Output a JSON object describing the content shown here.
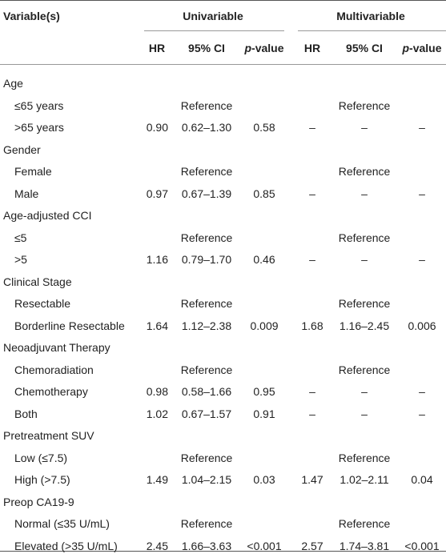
{
  "table": {
    "header": [
      "Variable(s)",
      "Univariable",
      "Multivariable"
    ],
    "subheader": [
      "HR",
      "95% CI",
      "p-value",
      "HR",
      "95% CI",
      "p-value"
    ],
    "rows": [
      [
        "Age"
      ],
      [
        "≤65 years",
        null,
        "Reference",
        null,
        null,
        "Reference",
        null
      ],
      [
        ">65 years",
        "0.90",
        "0.62–1.30",
        "0.58",
        "–",
        "–",
        "–"
      ],
      [
        "Gender"
      ],
      [
        "Female",
        null,
        "Reference",
        null,
        null,
        "Reference",
        null
      ],
      [
        "Male",
        "0.97",
        "0.67–1.39",
        "0.85",
        "–",
        "–",
        "–"
      ],
      [
        "Age-adjusted CCI"
      ],
      [
        "≤5",
        null,
        "Reference",
        null,
        null,
        "Reference",
        null
      ],
      [
        ">5",
        "1.16",
        "0.79–1.70",
        "0.46",
        "–",
        "–",
        "–"
      ],
      [
        "Clinical Stage"
      ],
      [
        "Resectable",
        null,
        "Reference",
        null,
        null,
        "Reference",
        null
      ],
      [
        "Borderline Resectable",
        "1.64",
        "1.12–2.38",
        "0.009",
        "1.68",
        "1.16–2.45",
        "0.006"
      ],
      [
        "Neoadjuvant Therapy"
      ],
      [
        "Chemoradiation",
        null,
        "Reference",
        null,
        null,
        "Reference",
        null
      ],
      [
        "Chemotherapy",
        "0.98",
        "0.58–1.66",
        "0.95",
        "–",
        "–",
        "–"
      ],
      [
        "Both",
        "1.02",
        "0.67–1.57",
        "0.91",
        "–",
        "–",
        "–"
      ],
      [
        "Pretreatment SUV"
      ],
      [
        "Low (≤7.5)",
        null,
        "Reference",
        null,
        null,
        "Reference",
        null
      ],
      [
        "High (>7.5)",
        "1.49",
        "1.04–2.15",
        "0.03",
        "1.47",
        "1.02–2.11",
        "0.04"
      ],
      [
        "Preop CA19-9"
      ],
      [
        "Normal (≤35 U/mL)",
        null,
        "Reference",
        null,
        null,
        "Reference",
        null
      ],
      [
        "Elevated (>35 U/mL)",
        "2.45",
        "1.66–3.63",
        "<0.001",
        "2.57",
        "1.74–3.81",
        "<0.001"
      ]
    ]
  }
}
